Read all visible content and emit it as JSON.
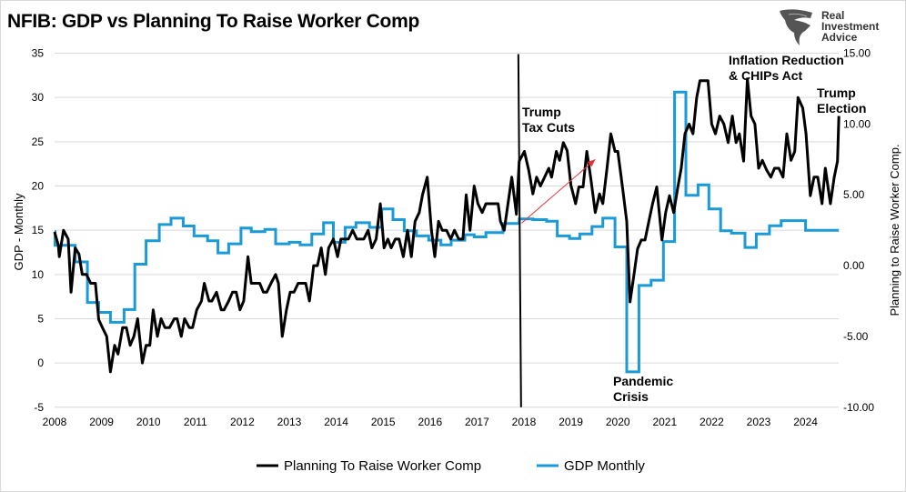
{
  "title": "NFIB: GDP vs Planning To Raise Worker Comp",
  "logo": {
    "lines": [
      "Real",
      "Investment",
      "Advice"
    ]
  },
  "chart_data": {
    "type": "line",
    "title": "NFIB: GDP vs Planning To Raise Worker Comp",
    "xlabel": "",
    "ylabel_left": "GDP - Monthly",
    "ylabel_right": "Planning to Raise Worker Comp.",
    "x_ticks": [
      "2008",
      "2009",
      "2010",
      "2011",
      "2012",
      "2013",
      "2014",
      "2015",
      "2016",
      "2017",
      "2018",
      "2019",
      "2020",
      "2021",
      "2022",
      "2023",
      "2024"
    ],
    "ylim_left": [
      -5,
      35
    ],
    "yticks_left": [
      "35",
      "30",
      "25",
      "20",
      "15",
      "10",
      "5",
      "0",
      "-5"
    ],
    "ylim_right": [
      -10,
      15
    ],
    "yticks_right": [
      "15.00",
      "10.00",
      "5.00",
      "0.00",
      "-5.00",
      "-10.00"
    ],
    "grid": true,
    "legend_placement": "bottom",
    "series": [
      {
        "name": "Planning To Raise Worker Comp",
        "axis": "left",
        "color": "#000000",
        "points": [
          [
            2008.0,
            14.8
          ],
          [
            2008.08,
            13.3
          ],
          [
            2008.1,
            12
          ],
          [
            2008.19,
            15
          ],
          [
            2008.29,
            14
          ],
          [
            2008.35,
            8
          ],
          [
            2008.44,
            13
          ],
          [
            2008.52,
            12.3
          ],
          [
            2008.59,
            10
          ],
          [
            2008.68,
            10
          ],
          [
            2008.77,
            9
          ],
          [
            2008.87,
            9
          ],
          [
            2008.94,
            4.9
          ],
          [
            2009.02,
            4
          ],
          [
            2009.11,
            3
          ],
          [
            2009.19,
            -1
          ],
          [
            2009.28,
            2
          ],
          [
            2009.35,
            1
          ],
          [
            2009.45,
            4
          ],
          [
            2009.53,
            4
          ],
          [
            2009.61,
            2
          ],
          [
            2009.69,
            3
          ],
          [
            2009.77,
            5
          ],
          [
            2009.87,
            0
          ],
          [
            2009.95,
            2
          ],
          [
            2010.03,
            2
          ],
          [
            2010.1,
            6
          ],
          [
            2010.19,
            3
          ],
          [
            2010.27,
            5
          ],
          [
            2010.35,
            4
          ],
          [
            2010.45,
            4
          ],
          [
            2010.55,
            5
          ],
          [
            2010.61,
            5
          ],
          [
            2010.7,
            3
          ],
          [
            2010.77,
            5
          ],
          [
            2010.87,
            4
          ],
          [
            2010.94,
            4
          ],
          [
            2011.03,
            6
          ],
          [
            2011.13,
            7
          ],
          [
            2011.19,
            9
          ],
          [
            2011.29,
            7
          ],
          [
            2011.35,
            7
          ],
          [
            2011.45,
            8
          ],
          [
            2011.55,
            6
          ],
          [
            2011.61,
            6
          ],
          [
            2011.71,
            7
          ],
          [
            2011.79,
            8
          ],
          [
            2011.87,
            8
          ],
          [
            2011.95,
            6
          ],
          [
            2012.03,
            7
          ],
          [
            2012.12,
            12
          ],
          [
            2012.19,
            9
          ],
          [
            2012.29,
            9
          ],
          [
            2012.37,
            9
          ],
          [
            2012.45,
            8
          ],
          [
            2012.52,
            8
          ],
          [
            2012.61,
            9
          ],
          [
            2012.71,
            10
          ],
          [
            2012.77,
            9
          ],
          [
            2012.85,
            3
          ],
          [
            2012.94,
            6
          ],
          [
            2013.02,
            8
          ],
          [
            2013.1,
            8
          ],
          [
            2013.19,
            9
          ],
          [
            2013.28,
            9
          ],
          [
            2013.35,
            9
          ],
          [
            2013.43,
            7
          ],
          [
            2013.52,
            11
          ],
          [
            2013.6,
            11
          ],
          [
            2013.68,
            13
          ],
          [
            2013.77,
            10
          ],
          [
            2013.84,
            13
          ],
          [
            2013.94,
            14
          ],
          [
            2014.03,
            12
          ],
          [
            2014.1,
            14
          ],
          [
            2014.18,
            14
          ],
          [
            2014.26,
            14
          ],
          [
            2014.35,
            15
          ],
          [
            2014.44,
            14
          ],
          [
            2014.52,
            14
          ],
          [
            2014.59,
            14
          ],
          [
            2014.68,
            15
          ],
          [
            2014.76,
            13
          ],
          [
            2014.85,
            14
          ],
          [
            2014.94,
            18
          ],
          [
            2015.02,
            13
          ],
          [
            2015.1,
            14
          ],
          [
            2015.17,
            13
          ],
          [
            2015.26,
            14
          ],
          [
            2015.34,
            14
          ],
          [
            2015.43,
            12
          ],
          [
            2015.52,
            15
          ],
          [
            2015.6,
            12
          ],
          [
            2015.68,
            16
          ],
          [
            2015.77,
            17
          ],
          [
            2015.84,
            19
          ],
          [
            2015.94,
            21
          ],
          [
            2016.03,
            15
          ],
          [
            2016.1,
            12
          ],
          [
            2016.18,
            16
          ],
          [
            2016.26,
            15
          ],
          [
            2016.35,
            15
          ],
          [
            2016.44,
            14
          ],
          [
            2016.52,
            15
          ],
          [
            2016.61,
            14
          ],
          [
            2016.7,
            14
          ],
          [
            2016.77,
            19
          ],
          [
            2016.85,
            15
          ],
          [
            2016.94,
            20
          ],
          [
            2017.02,
            18
          ],
          [
            2017.11,
            17
          ],
          [
            2017.19,
            18
          ],
          [
            2017.29,
            18
          ],
          [
            2017.35,
            18
          ],
          [
            2017.45,
            18
          ],
          [
            2017.5,
            16
          ],
          [
            2017.58,
            15
          ],
          [
            2017.74,
            21
          ],
          [
            2017.84,
            16.8
          ],
          [
            2017.9,
            22.8
          ],
          [
            2018.01,
            23.9
          ],
          [
            2018.1,
            21.8
          ],
          [
            2018.19,
            19.1
          ],
          [
            2018.27,
            21
          ],
          [
            2018.35,
            20
          ],
          [
            2018.44,
            21
          ],
          [
            2018.53,
            22
          ],
          [
            2018.59,
            21
          ],
          [
            2018.69,
            23.9
          ],
          [
            2018.76,
            22.9
          ],
          [
            2018.84,
            24.9
          ],
          [
            2018.92,
            24
          ],
          [
            2019.0,
            20.1
          ],
          [
            2019.1,
            18
          ],
          [
            2019.17,
            19.9
          ],
          [
            2019.26,
            19.9
          ],
          [
            2019.34,
            23.9
          ],
          [
            2019.42,
            21
          ],
          [
            2019.52,
            17
          ],
          [
            2019.61,
            19.1
          ],
          [
            2019.68,
            18
          ],
          [
            2019.77,
            22
          ],
          [
            2019.85,
            25.9
          ],
          [
            2019.94,
            23.9
          ],
          [
            2020.0,
            23.9
          ],
          [
            2020.1,
            19.8
          ],
          [
            2020.19,
            16
          ],
          [
            2020.26,
            6.9
          ],
          [
            2020.34,
            9.8
          ],
          [
            2020.42,
            12.9
          ],
          [
            2020.5,
            13.9
          ],
          [
            2020.58,
            13.9
          ],
          [
            2020.66,
            16
          ],
          [
            2020.74,
            18
          ],
          [
            2020.83,
            19.9
          ],
          [
            2020.94,
            13.9
          ],
          [
            2021.02,
            17
          ],
          [
            2021.1,
            18.9
          ],
          [
            2021.19,
            17
          ],
          [
            2021.28,
            19.9
          ],
          [
            2021.35,
            22
          ],
          [
            2021.43,
            25.9
          ],
          [
            2021.52,
            27
          ],
          [
            2021.6,
            25.9
          ],
          [
            2021.68,
            30
          ],
          [
            2021.75,
            31.9
          ],
          [
            2021.84,
            31.9
          ],
          [
            2021.92,
            31.9
          ],
          [
            2022.0,
            27
          ],
          [
            2022.08,
            25.9
          ],
          [
            2022.17,
            27.9
          ],
          [
            2022.26,
            27
          ],
          [
            2022.35,
            24.9
          ],
          [
            2022.44,
            27.9
          ],
          [
            2022.52,
            24.9
          ],
          [
            2022.59,
            25.9
          ],
          [
            2022.68,
            22.8
          ],
          [
            2022.76,
            32.1
          ],
          [
            2022.84,
            27.9
          ],
          [
            2022.92,
            27
          ],
          [
            2023.0,
            22
          ],
          [
            2023.08,
            22.9
          ],
          [
            2023.17,
            21.8
          ],
          [
            2023.26,
            21
          ],
          [
            2023.34,
            22
          ],
          [
            2023.43,
            22
          ],
          [
            2023.52,
            21
          ],
          [
            2023.6,
            25.9
          ],
          [
            2023.69,
            22.9
          ],
          [
            2023.77,
            23.9
          ],
          [
            2023.84,
            30
          ],
          [
            2023.94,
            28.8
          ],
          [
            2024.01,
            25.9
          ],
          [
            2024.1,
            18.9
          ],
          [
            2024.18,
            21
          ],
          [
            2024.26,
            21
          ],
          [
            2024.35,
            18
          ],
          [
            2024.42,
            22
          ],
          [
            2024.53,
            18
          ],
          [
            2024.61,
            21
          ],
          [
            2024.68,
            22.8
          ],
          [
            2024.71,
            27.9
          ]
        ]
      },
      {
        "name": "GDP Monthly",
        "axis": "right",
        "color": "#1a9ad6",
        "step": true,
        "end": 2024.71,
        "points": [
          [
            2008.0,
            2.4
          ],
          [
            2008.01,
            1.43
          ],
          [
            2008.44,
            0.26
          ],
          [
            2008.7,
            -2.6
          ],
          [
            2008.94,
            -3.3
          ],
          [
            2009.19,
            -4.0
          ],
          [
            2009.48,
            -3.1
          ],
          [
            2009.71,
            0.1
          ],
          [
            2009.95,
            1.75
          ],
          [
            2010.23,
            2.9
          ],
          [
            2010.48,
            3.35
          ],
          [
            2010.74,
            2.8
          ],
          [
            2010.97,
            2.1
          ],
          [
            2011.26,
            1.75
          ],
          [
            2011.48,
            0.9
          ],
          [
            2011.71,
            1.54
          ],
          [
            2011.97,
            2.65
          ],
          [
            2012.19,
            2.4
          ],
          [
            2012.48,
            2.56
          ],
          [
            2012.71,
            1.54
          ],
          [
            2013.0,
            1.65
          ],
          [
            2013.23,
            1.47
          ],
          [
            2013.48,
            2.24
          ],
          [
            2013.73,
            3.03
          ],
          [
            2013.94,
            1.65
          ],
          [
            2014.19,
            2.7
          ],
          [
            2014.42,
            3.03
          ],
          [
            2014.71,
            2.7
          ],
          [
            2014.97,
            4.0
          ],
          [
            2015.21,
            3.25
          ],
          [
            2015.45,
            2.46
          ],
          [
            2015.71,
            2.1
          ],
          [
            2015.97,
            1.8
          ],
          [
            2016.23,
            1.47
          ],
          [
            2016.45,
            1.8
          ],
          [
            2016.74,
            2.18
          ],
          [
            2016.94,
            2.03
          ],
          [
            2017.19,
            2.33
          ],
          [
            2017.55,
            2.97
          ],
          [
            2017.9,
            3.3
          ],
          [
            2018.19,
            3.25
          ],
          [
            2018.48,
            3.14
          ],
          [
            2018.71,
            2.1
          ],
          [
            2018.97,
            1.92
          ],
          [
            2019.19,
            2.24
          ],
          [
            2019.45,
            2.76
          ],
          [
            2019.68,
            3.35
          ],
          [
            2019.94,
            1.32
          ],
          [
            2020.19,
            -7.5
          ],
          [
            2020.45,
            -1.4
          ],
          [
            2020.71,
            -1.03
          ],
          [
            2020.97,
            1.7
          ],
          [
            2021.21,
            12.26
          ],
          [
            2021.45,
            4.96
          ],
          [
            2021.71,
            5.7
          ],
          [
            2021.94,
            4.0
          ],
          [
            2022.19,
            2.46
          ],
          [
            2022.42,
            2.29
          ],
          [
            2022.71,
            1.28
          ],
          [
            2022.95,
            2.24
          ],
          [
            2023.23,
            2.82
          ],
          [
            2023.48,
            3.18
          ],
          [
            2024.0,
            2.5
          ]
        ]
      }
    ],
    "vertical_marker": {
      "x": 2017.9,
      "color": "#000000"
    },
    "arrow": {
      "from": [
        2017.95,
        15.8
      ],
      "to": [
        2019.52,
        23.0
      ],
      "axis": "left",
      "color": "#e8303a"
    },
    "annotations": [
      {
        "lines": [
          "Trump",
          "Tax Cuts"
        ]
      },
      {
        "lines": [
          "Pandemic",
          "Crisis"
        ]
      },
      {
        "lines": [
          "Inflation Reduction",
          "& CHIPs Act"
        ]
      },
      {
        "lines": [
          "Trump",
          "Election"
        ]
      }
    ]
  }
}
